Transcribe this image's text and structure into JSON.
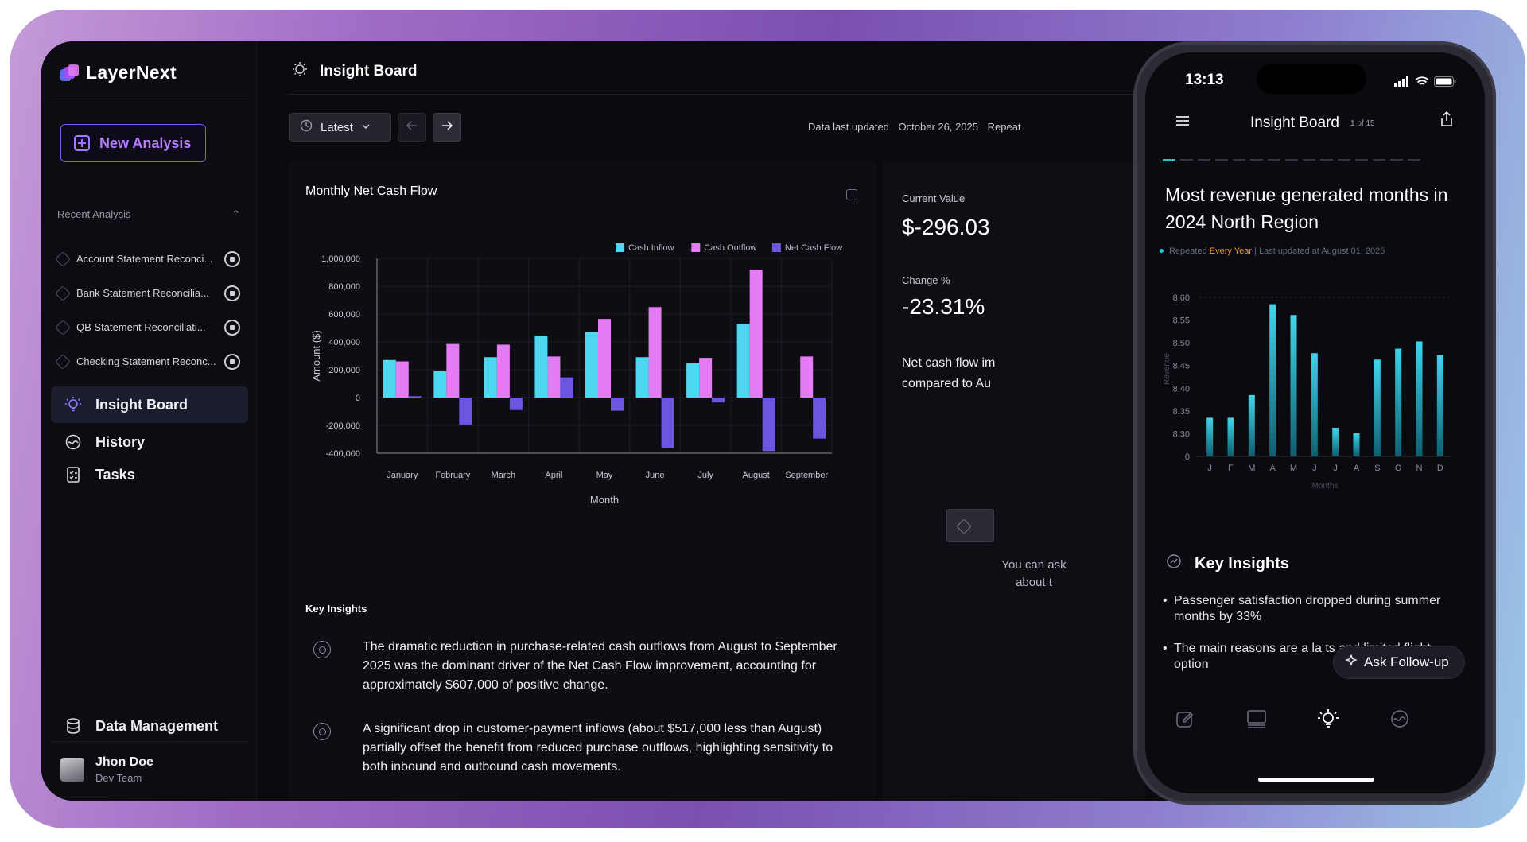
{
  "app": {
    "name": "LayerNext"
  },
  "sidebar": {
    "new_analysis": "New Analysis",
    "recent_heading": "Recent Analysis",
    "recent_items": [
      "Account Statement Reconci...",
      "Bank Statement Reconcilia...",
      "QB Statement Reconciliati...",
      "Checking Statement Reconc..."
    ],
    "nav": [
      {
        "label": "Insight Board",
        "icon": "bulb-icon",
        "active": true
      },
      {
        "label": "History",
        "icon": "history-icon",
        "active": false
      },
      {
        "label": "Tasks",
        "icon": "tasks-icon",
        "active": false
      }
    ],
    "data_management": "Data Management",
    "user": {
      "name": "Jhon Doe",
      "team": "Dev Team"
    }
  },
  "header": {
    "title": "Insight Board"
  },
  "toolbar": {
    "latest": "Latest",
    "updated_label": "Data last updated",
    "updated_date": "October 26, 2025",
    "repeat_label": "Repeat"
  },
  "chart_data": {
    "type": "bar",
    "title": "Monthly Net Cash Flow",
    "xlabel": "Month",
    "ylabel": "Amount ($)",
    "ylim": [
      -400000,
      1000000
    ],
    "yticks": [
      "1,000,000",
      "800,000",
      "600,000",
      "400,000",
      "200,000",
      "0",
      "-200,000",
      "-400,000"
    ],
    "categories": [
      "January",
      "February",
      "March",
      "April",
      "May",
      "June",
      "July",
      "August",
      "September"
    ],
    "legend_position": "top-right",
    "series": [
      {
        "name": "Cash Inflow",
        "color": "#4fd6f0",
        "values": [
          270000,
          190000,
          290000,
          440000,
          470000,
          290000,
          250000,
          530000,
          0
        ]
      },
      {
        "name": "Cash Outflow",
        "color": "#e37cf2",
        "values": [
          260000,
          385000,
          380000,
          295000,
          565000,
          650000,
          285000,
          920000,
          295000
        ]
      },
      {
        "name": "Net Cash Flow",
        "color": "#6b56e0",
        "values": [
          10000,
          -195000,
          -90000,
          145000,
          -95000,
          -360000,
          -35000,
          -385000,
          -295000
        ]
      }
    ]
  },
  "key_insights": {
    "title": "Key Insights",
    "items": [
      "The dramatic reduction in purchase-related cash outflows from August to September 2025 was the dominant driver of the Net Cash Flow improvement, accounting for approximately $607,000 of positive change.",
      "A significant drop in customer-payment inflows (about $517,000 less than August) partially offset the benefit from reduced purchase outflows, highlighting sensitivity to both inbound and outbound cash movements."
    ]
  },
  "summary": {
    "current_label": "Current Value",
    "current_value": "$-296.03",
    "change_label": "Change %",
    "change_value": "-23.31%",
    "note_line1": "Net cash flow im",
    "note_line2": "compared to Au",
    "ask_hint_line1": "You can ask",
    "ask_hint_line2": "about t"
  },
  "phone": {
    "time": "13:13",
    "title": "Insight Board",
    "page": "1 of 15",
    "headline": "Most revenue generated months in 2024 North Region",
    "meta_repeated": "Repeated",
    "meta_every": "Every Year",
    "meta_updated": "| Last updated at August 01, 2025",
    "chart_data": {
      "type": "bar",
      "ylabel": "Revenue",
      "xlabel": "Months",
      "yticks": [
        "8.60",
        "8.55",
        "8.50",
        "8.45",
        "8.40",
        "8.35",
        "8.30",
        "0"
      ],
      "categories": [
        "J",
        "F",
        "M",
        "A",
        "M",
        "J",
        "J",
        "A",
        "S",
        "O",
        "N",
        "D"
      ],
      "values": [
        8.335,
        8.335,
        8.385,
        8.585,
        8.561,
        8.477,
        8.313,
        8.301,
        8.463,
        8.487,
        8.503,
        8.473
      ]
    },
    "key_insights_title": "Key Insights",
    "bullets": [
      "Passenger satisfaction dropped during summer months by 33%",
      "The main reasons are a la        ts and limited flight option"
    ],
    "follow_up": "Ask Follow-up"
  }
}
